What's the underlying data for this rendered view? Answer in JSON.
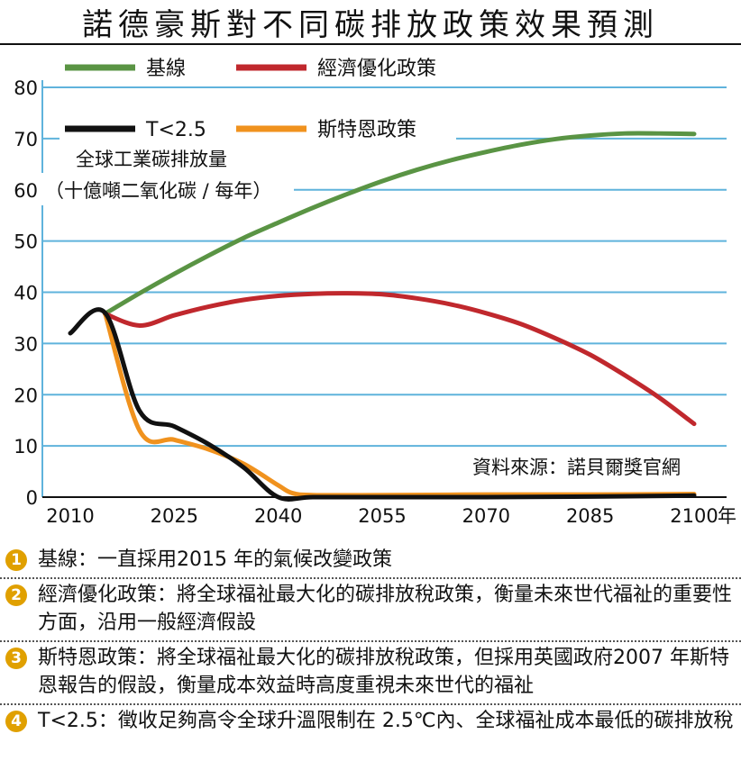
{
  "title": "諾德豪斯對不同碳排放政策效果預測",
  "source": "資料來源：諾貝爾獎官網",
  "chart_data": {
    "type": "line",
    "ylabel_lines": [
      "全球工業碳排放量",
      "（十億噸二氧化碳 / 每年）"
    ],
    "x_unit": "年",
    "xlim": [
      2010,
      2105
    ],
    "ylim": [
      0,
      80
    ],
    "grid": true,
    "legend_position": "top-left",
    "x_ticks": [
      2010,
      2025,
      2040,
      2055,
      2070,
      2085,
      2100
    ],
    "y_ticks": [
      0,
      10,
      20,
      30,
      40,
      50,
      60,
      70,
      80
    ],
    "series": [
      {
        "name": "基線",
        "color": "#5a9444",
        "x": [
          2015,
          2020,
          2025,
          2030,
          2035,
          2040,
          2045,
          2050,
          2055,
          2060,
          2065,
          2070,
          2075,
          2080,
          2085,
          2090,
          2095,
          2100
        ],
        "y": [
          35.8,
          39.8,
          43.6,
          47.2,
          50.6,
          53.6,
          56.5,
          59.2,
          61.7,
          63.9,
          65.8,
          67.4,
          68.8,
          69.9,
          70.6,
          71.0,
          71.0,
          70.9
        ]
      },
      {
        "name": "經濟優化政策",
        "color": "#c0282d",
        "x": [
          2015,
          2020,
          2025,
          2030,
          2035,
          2040,
          2045,
          2050,
          2055,
          2060,
          2065,
          2070,
          2075,
          2080,
          2085,
          2090,
          2095,
          2100
        ],
        "y": [
          35.8,
          33.5,
          35.5,
          37.2,
          38.5,
          39.3,
          39.7,
          39.8,
          39.6,
          38.8,
          37.6,
          35.9,
          33.8,
          31.0,
          27.8,
          23.8,
          19.4,
          14.3
        ]
      },
      {
        "name": "T<2.5",
        "color": "#111111",
        "x": [
          2010,
          2015,
          2020,
          2025,
          2030,
          2035,
          2040,
          2045,
          2055,
          2070,
          2085,
          2100
        ],
        "y": [
          32,
          36,
          16.8,
          13.8,
          10.3,
          5.8,
          0,
          0,
          0,
          0,
          0.1,
          0.3
        ]
      },
      {
        "name": "斯特恩政策",
        "color": "#f0921e",
        "x": [
          2015,
          2020,
          2025,
          2030,
          2035,
          2040,
          2042,
          2045,
          2055,
          2070,
          2085,
          2100
        ],
        "y": [
          36,
          13,
          11.2,
          9.3,
          6.5,
          2.3,
          0.8,
          0.4,
          0.4,
          0.5,
          0.5,
          0.6
        ]
      }
    ]
  },
  "notes": [
    {
      "num": "1",
      "text": "基線：一直採用2015 年的氣候改變政策"
    },
    {
      "num": "2",
      "text": "經濟優化政策：將全球福祉最大化的碳排放稅政策，衡量未來世代福祉的重要性方面，沿用一般經濟假設"
    },
    {
      "num": "3",
      "text": "斯特恩政策：將全球福祉最大化的碳排放稅政策，但採用英國政府2007 年斯特恩報告的假設，衡量成本效益時高度重視未來世代的福祉"
    },
    {
      "num": "4",
      "text": "T<2.5：徵收足夠高令全球升溫限制在 2.5℃內、全球福祉成本最低的碳排放稅"
    }
  ]
}
